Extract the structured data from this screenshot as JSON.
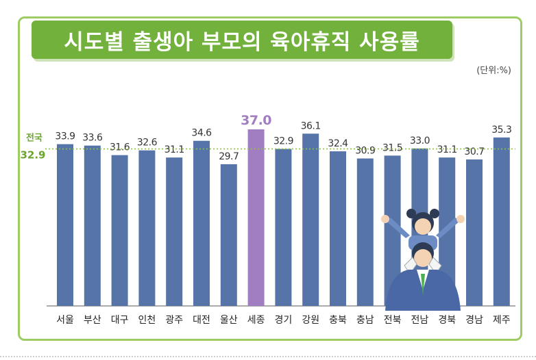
{
  "title": "시도별 출생아 부모의 육아휴직 사용률",
  "unit_label": "(단위:%)",
  "national": {
    "label": "전국",
    "value_label": "32.9"
  },
  "colors": {
    "bar": "#5674a8",
    "highlight": "#a17ec2",
    "national_line": "#8cc63f",
    "title_bg": "#72b23c"
  },
  "chart_data": {
    "type": "bar",
    "categories": [
      "서울",
      "부산",
      "대구",
      "인천",
      "광주",
      "대전",
      "울산",
      "세종",
      "경기",
      "강원",
      "충북",
      "충남",
      "전북",
      "전남",
      "경북",
      "경남",
      "제주"
    ],
    "values": [
      33.9,
      33.6,
      31.6,
      32.6,
      31.1,
      34.6,
      29.7,
      37.0,
      32.9,
      36.1,
      32.4,
      30.9,
      31.5,
      33.0,
      31.1,
      30.7,
      35.3
    ],
    "value_labels": [
      "33.9",
      "33.6",
      "31.6",
      "32.6",
      "31.1",
      "34.6",
      "29.7",
      "37.0",
      "32.9",
      "36.1",
      "32.4",
      "30.9",
      "31.5",
      "33.0",
      "31.1",
      "30.7",
      "35.3"
    ],
    "highlight_index": 7,
    "national_value": 32.9,
    "ylim": [
      0,
      37.0
    ],
    "title": "시도별 출생아 부모의 육아휴직 사용률",
    "ylabel": "",
    "xlabel": ""
  }
}
